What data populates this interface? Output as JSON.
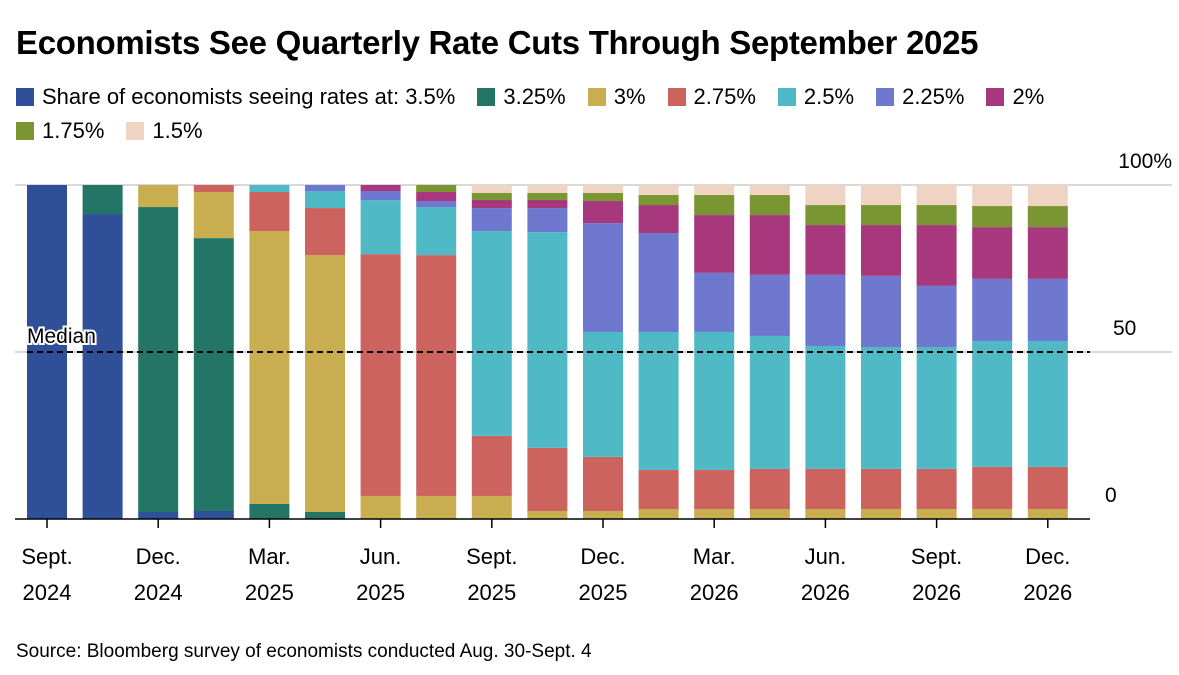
{
  "chart_data": {
    "type": "bar",
    "stacked": true,
    "title": "Economists See Quarterly Rate Cuts Through September 2025",
    "legend_prefix": "Share of economists seeing rates at:",
    "categories": [
      "Sept.\n2024",
      "",
      "Dec.\n2024",
      "",
      "Mar.\n2025",
      "",
      "Jun.\n2025",
      "",
      "Sept.\n2025",
      "",
      "Dec.\n2025",
      "",
      "Mar.\n2026",
      "",
      "Jun.\n2026",
      "",
      "Sept.\n2026",
      "",
      "Dec.\n2026"
    ],
    "series": [
      {
        "name": "3.5%",
        "color": "#2f4f98",
        "values": [
          100,
          91.3,
          2.1,
          2.4,
          0,
          0,
          0,
          0,
          0,
          0,
          0,
          0,
          0,
          0,
          0,
          0,
          0,
          0,
          0
        ]
      },
      {
        "name": "3.25%",
        "color": "#237566",
        "values": [
          0,
          8.7,
          91.3,
          81.7,
          4.5,
          2.1,
          0,
          0,
          0,
          0,
          0,
          0,
          0,
          0,
          0,
          0,
          0,
          0,
          0
        ]
      },
      {
        "name": "3%",
        "color": "#c8ad51",
        "values": [
          0,
          0,
          6.6,
          13.8,
          81.7,
          76.9,
          6.9,
          6.9,
          6.9,
          2.4,
          2.4,
          3,
          3,
          3,
          3,
          3,
          3,
          3,
          3
        ]
      },
      {
        "name": "2.75%",
        "color": "#cc635e",
        "values": [
          0,
          0,
          0,
          2.1,
          11.7,
          14.1,
          72.4,
          72.1,
          18,
          18.9,
          16.2,
          11.7,
          11.7,
          12,
          12,
          12,
          12,
          12.6,
          12.6
        ]
      },
      {
        "name": "2.5%",
        "color": "#4fbac6",
        "values": [
          0,
          0,
          0,
          0,
          2.1,
          5.1,
          16.2,
          14.4,
          61.3,
          64.6,
          37.4,
          41.3,
          41.3,
          39.8,
          36.8,
          36.5,
          36.5,
          37.7,
          37.7
        ]
      },
      {
        "name": "2.25%",
        "color": "#6e78cf",
        "values": [
          0,
          0,
          0,
          0,
          0,
          1.8,
          2.7,
          1.8,
          6.9,
          7.2,
          32.6,
          29.6,
          17.7,
          18.3,
          21.3,
          21.3,
          18.3,
          18.6,
          18.6
        ]
      },
      {
        "name": "2%",
        "color": "#a8387d",
        "values": [
          0,
          0,
          0,
          0,
          0,
          0,
          1.8,
          2.7,
          2.4,
          2.4,
          6.6,
          8.4,
          17.3,
          17.9,
          14.9,
          15.2,
          18.2,
          15.5,
          15.5
        ]
      },
      {
        "name": "1.75%",
        "color": "#7a9632",
        "values": [
          0,
          0,
          0,
          0,
          0,
          0,
          0,
          2.1,
          2.1,
          2.1,
          2.4,
          3,
          6,
          6,
          6,
          6,
          6,
          6.3,
          6.3
        ]
      },
      {
        "name": "1.5%",
        "color": "#efd3c3",
        "values": [
          0,
          0,
          0,
          0,
          0,
          0,
          0,
          0,
          2.4,
          2.4,
          2.4,
          3,
          3,
          3,
          6,
          6,
          6,
          6.3,
          6.3
        ]
      }
    ],
    "yticks": [
      "0",
      "50",
      "100%"
    ],
    "ylim": [
      0,
      100
    ],
    "annotations": [
      {
        "text": "Median",
        "value": 50
      }
    ],
    "grid": true,
    "legend_placement": "top"
  },
  "source": "Source: Bloomberg survey of economists conducted Aug. 30-Sept. 4"
}
